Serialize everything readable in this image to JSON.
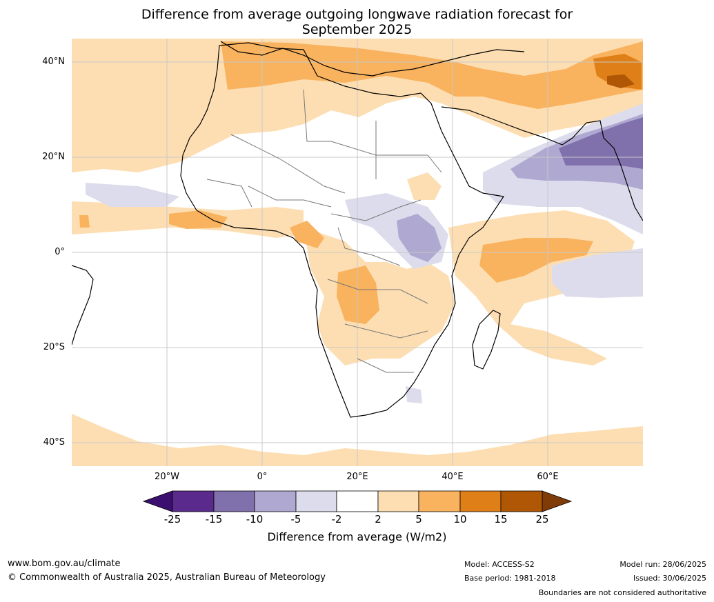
{
  "title_line1": "Difference from average outgoing longwave radiation forecast for",
  "title_line2": "September 2025",
  "lat_labels": [
    "40°N",
    "20°N",
    "0°",
    "20°S",
    "40°S"
  ],
  "lon_labels": [
    "20°W",
    "0°",
    "20°E",
    "40°E",
    "60°E"
  ],
  "colorbar": {
    "ticks": [
      "-25",
      "-15",
      "-10",
      "-5",
      "-2",
      "2",
      "5",
      "10",
      "15",
      "25"
    ],
    "colors": [
      "#3b0f6f",
      "#5a2a8c",
      "#8070ac",
      "#afa8d1",
      "#dcdcec",
      "#ffffff",
      "#fddeb2",
      "#f9b25e",
      "#df7f18",
      "#b05706",
      "#7f3b08"
    ],
    "label": "Difference from average (W/m2)"
  },
  "footer": {
    "url": "www.bom.gov.au/climate",
    "copyright": "© Commonwealth of Australia 2025, Australian Bureau of Meteorology",
    "model": "Model: ACCESS-S2",
    "base_period": "Base period: 1981-2018",
    "model_run": "Model run: 28/06/2025",
    "issued": "Issued: 30/06/2025",
    "disclaimer": "Boundaries are not considered authoritative"
  }
}
